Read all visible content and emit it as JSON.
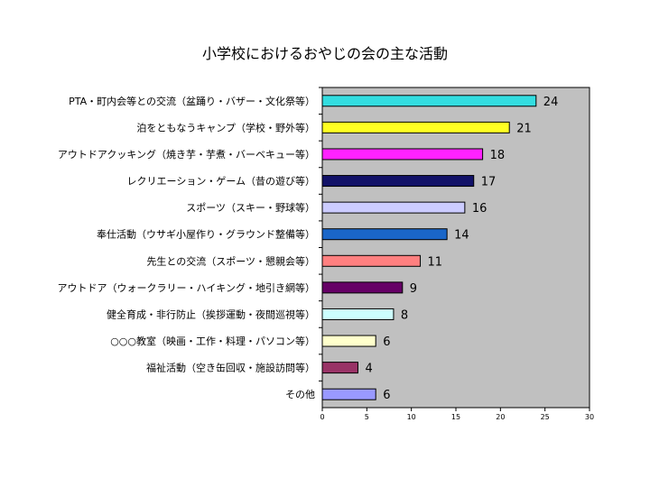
{
  "chart_data": {
    "type": "bar",
    "orientation": "horizontal",
    "title": "小学校におけるおやじの会の主な活動",
    "xlabel": "",
    "ylabel": "",
    "xlim": [
      0,
      30
    ],
    "xticks": [
      0,
      5,
      10,
      15,
      20,
      25,
      30
    ],
    "grid": false,
    "legend": "none",
    "categories": [
      "PTA・町内会等との交流（盆踊り・バザー・文化祭等）",
      "泊をともなうキャンプ（学校・野外等）",
      "アウトドアクッキング（焼き芋・芋煮・バーベキュー等）",
      "レクリエーション・ゲーム（昔の遊び等）",
      "スポーツ（スキー・野球等）",
      "奉仕活動（ウサギ小屋作り・グラウンド整備等）",
      "先生との交流（スポーツ・懇親会等）",
      "アウトドア（ウォークラリー・ハイキング・地引き網等）",
      "健全育成・非行防止（挨拶運動・夜間巡視等）",
      "○○○教室（映画・工作・料理・パソコン等）",
      "福祉活動（空き缶回収・施設訪問等）",
      "その他"
    ],
    "values": [
      24,
      21,
      18,
      17,
      16,
      14,
      11,
      9,
      8,
      6,
      4,
      6
    ],
    "colors": [
      "#33dde0",
      "#ffff22",
      "#ff22ff",
      "#121268",
      "#ccccff",
      "#1a66c8",
      "#ff8080",
      "#660066",
      "#ccffff",
      "#ffffcc",
      "#993366",
      "#9999ff"
    ],
    "plot_background": "#c0c0c0"
  }
}
